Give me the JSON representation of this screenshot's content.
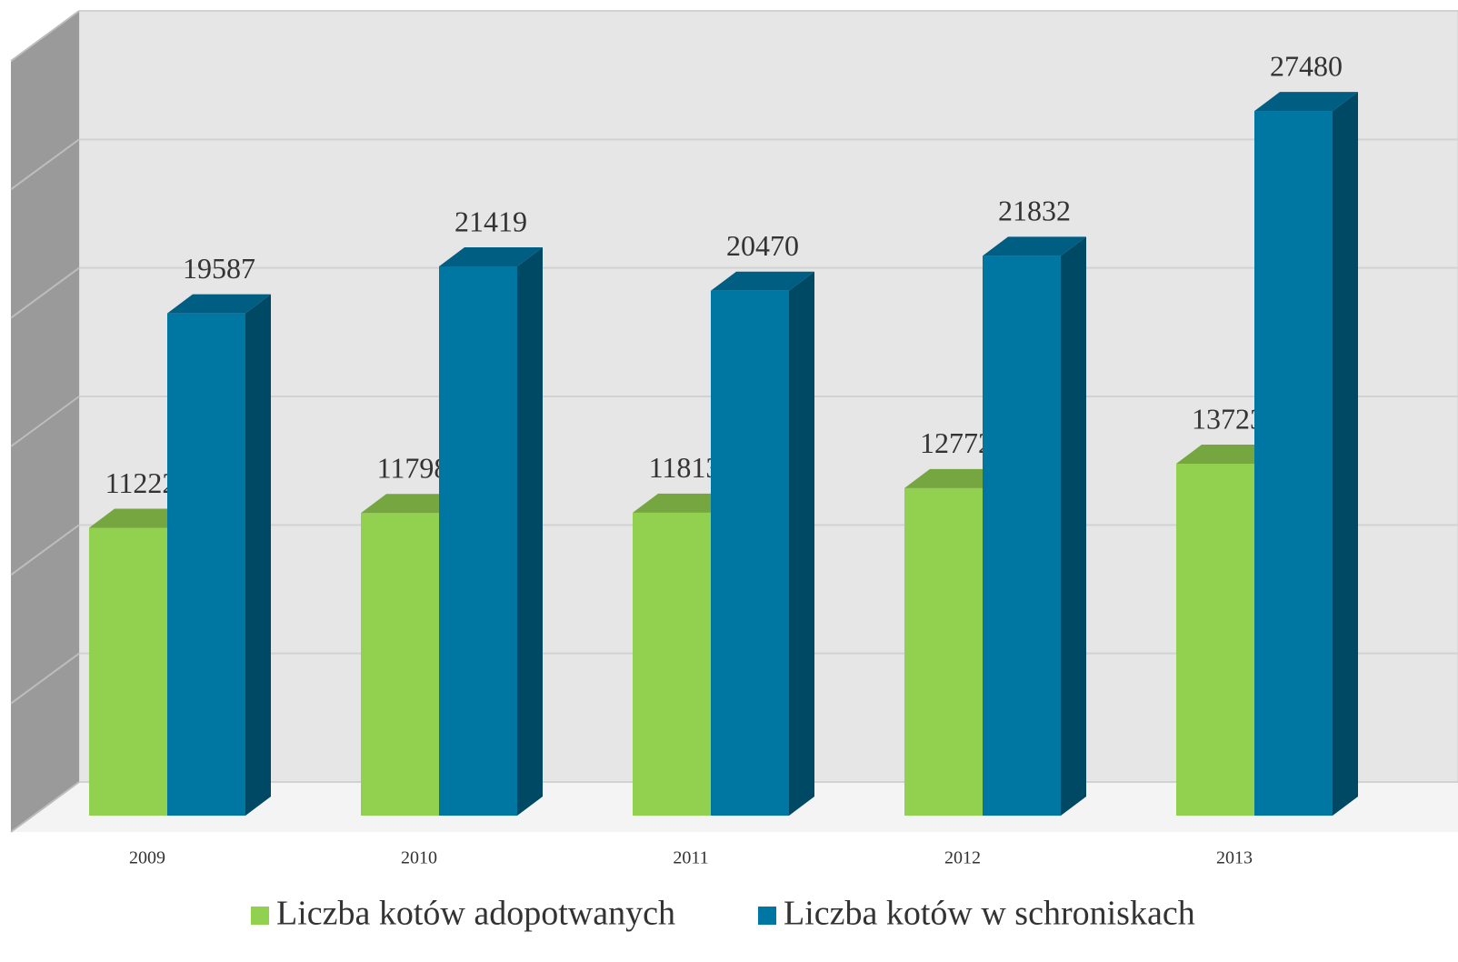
{
  "chart_data": {
    "type": "bar3d",
    "categories": [
      "2009",
      "2010",
      "2011",
      "2012",
      "2013"
    ],
    "series": [
      {
        "name": "Liczba kotów adopotwanych",
        "color": "#92d050",
        "values": [
          11222,
          11798,
          11813,
          12772,
          13723
        ]
      },
      {
        "name": "Liczba kotów w schroniskach",
        "color": "#0076a3",
        "values": [
          19587,
          21419,
          20470,
          21832,
          27480
        ]
      }
    ],
    "ylim": [
      0,
      30000
    ],
    "yticks": [
      0,
      5000,
      10000,
      15000,
      20000,
      25000,
      30000
    ],
    "grid": true,
    "legend": "bottom"
  }
}
